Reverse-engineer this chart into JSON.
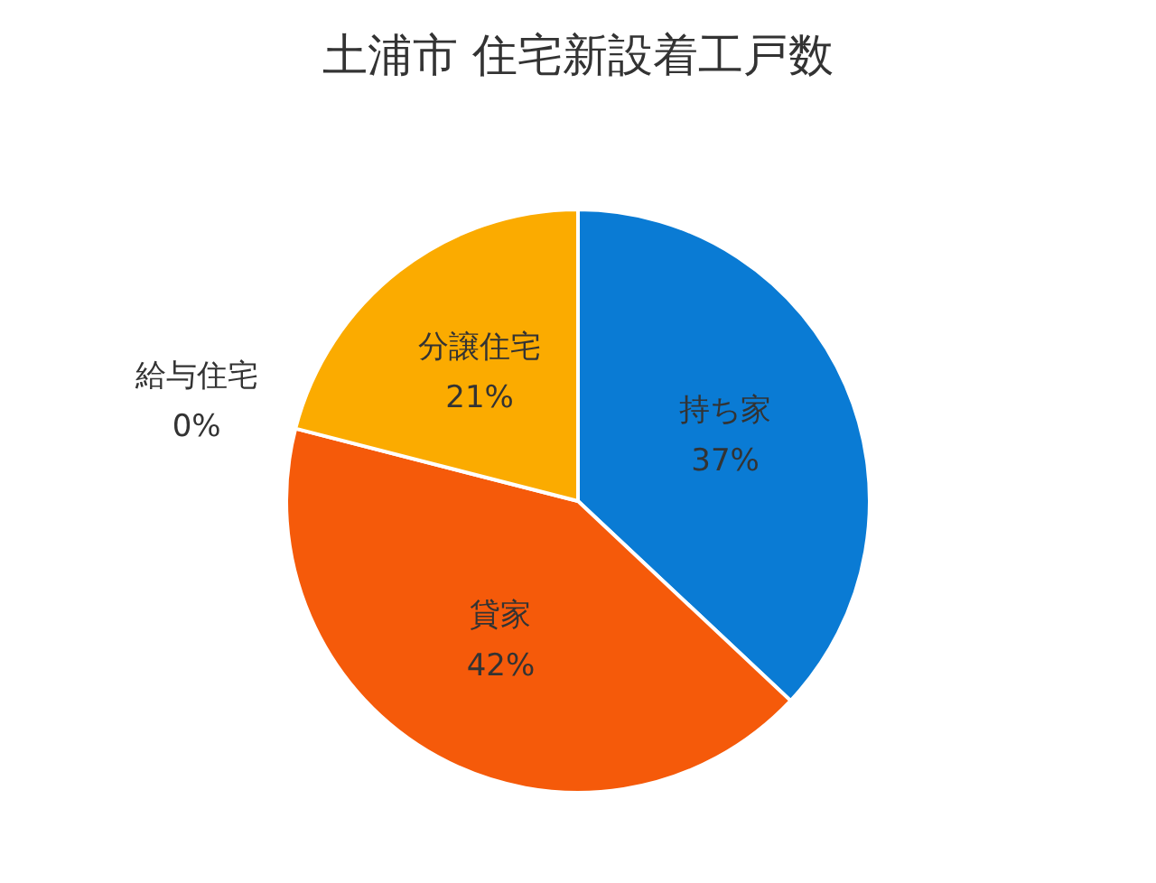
{
  "chart_data": {
    "type": "pie",
    "title": "土浦市 住宅新設着工戸数",
    "categories": [
      "持ち家",
      "貸家",
      "給与住宅",
      "分譲住宅"
    ],
    "values": [
      37,
      42,
      0,
      21
    ],
    "colors": [
      "#0a7bd4",
      "#f55a0a",
      "#8a8a8a",
      "#fbab00"
    ],
    "value_labels": [
      "37%",
      "42%",
      "0%",
      "21%"
    ],
    "legend": false
  }
}
